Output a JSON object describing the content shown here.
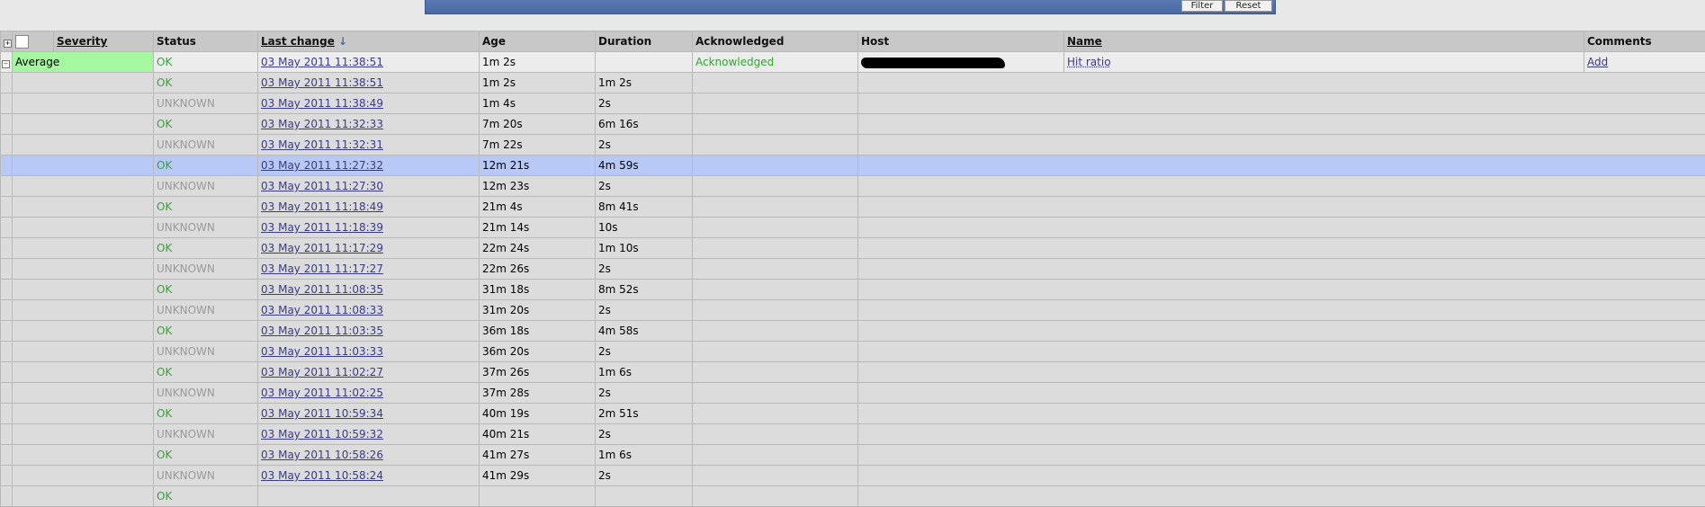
{
  "toolbar": {
    "filter_label": "Filter",
    "reset_label": "Reset"
  },
  "table": {
    "headers": {
      "severity": "Severity",
      "status": "Status",
      "last_change": "Last change",
      "age": "Age",
      "duration": "Duration",
      "acknowledged": "Acknowledged",
      "host": "Host",
      "name": "Name",
      "comments": "Comments"
    },
    "sort_indicator": "↓",
    "trigger": {
      "severity": "Average",
      "severity_color": "#a6f8a0",
      "status": "OK",
      "last_change": "03 May 2011 11:38:51",
      "age": "1m 2s",
      "duration": "",
      "acknowledged": "Acknowledged",
      "name": "Hit ratio",
      "comments": "Add"
    },
    "events": [
      {
        "status": "OK",
        "last_change": "03 May 2011 11:38:51",
        "age": "1m 2s",
        "duration": "1m 2s"
      },
      {
        "status": "UNKNOWN",
        "last_change": "03 May 2011 11:38:49",
        "age": "1m 4s",
        "duration": "2s"
      },
      {
        "status": "OK",
        "last_change": "03 May 2011 11:32:33",
        "age": "7m 20s",
        "duration": "6m 16s"
      },
      {
        "status": "UNKNOWN",
        "last_change": "03 May 2011 11:32:31",
        "age": "7m 22s",
        "duration": "2s"
      },
      {
        "status": "OK",
        "last_change": "03 May 2011 11:27:32",
        "age": "12m 21s",
        "duration": "4m 59s",
        "selected": true
      },
      {
        "status": "UNKNOWN",
        "last_change": "03 May 2011 11:27:30",
        "age": "12m 23s",
        "duration": "2s"
      },
      {
        "status": "OK",
        "last_change": "03 May 2011 11:18:49",
        "age": "21m 4s",
        "duration": "8m 41s"
      },
      {
        "status": "UNKNOWN",
        "last_change": "03 May 2011 11:18:39",
        "age": "21m 14s",
        "duration": "10s"
      },
      {
        "status": "OK",
        "last_change": "03 May 2011 11:17:29",
        "age": "22m 24s",
        "duration": "1m 10s"
      },
      {
        "status": "UNKNOWN",
        "last_change": "03 May 2011 11:17:27",
        "age": "22m 26s",
        "duration": "2s"
      },
      {
        "status": "OK",
        "last_change": "03 May 2011 11:08:35",
        "age": "31m 18s",
        "duration": "8m 52s"
      },
      {
        "status": "UNKNOWN",
        "last_change": "03 May 2011 11:08:33",
        "age": "31m 20s",
        "duration": "2s"
      },
      {
        "status": "OK",
        "last_change": "03 May 2011 11:03:35",
        "age": "36m 18s",
        "duration": "4m 58s"
      },
      {
        "status": "UNKNOWN",
        "last_change": "03 May 2011 11:03:33",
        "age": "36m 20s",
        "duration": "2s"
      },
      {
        "status": "OK",
        "last_change": "03 May 2011 11:02:27",
        "age": "37m 26s",
        "duration": "1m 6s"
      },
      {
        "status": "UNKNOWN",
        "last_change": "03 May 2011 11:02:25",
        "age": "37m 28s",
        "duration": "2s"
      },
      {
        "status": "OK",
        "last_change": "03 May 2011 10:59:34",
        "age": "40m 19s",
        "duration": "2m 51s"
      },
      {
        "status": "UNKNOWN",
        "last_change": "03 May 2011 10:59:32",
        "age": "40m 21s",
        "duration": "2s"
      },
      {
        "status": "OK",
        "last_change": "03 May 2011 10:58:26",
        "age": "41m 27s",
        "duration": "1m 6s"
      },
      {
        "status": "UNKNOWN",
        "last_change": "03 May 2011 10:58:24",
        "age": "41m 29s",
        "duration": "2s"
      },
      {
        "status": "OK",
        "last_change": "",
        "age": "",
        "duration": ""
      }
    ]
  }
}
